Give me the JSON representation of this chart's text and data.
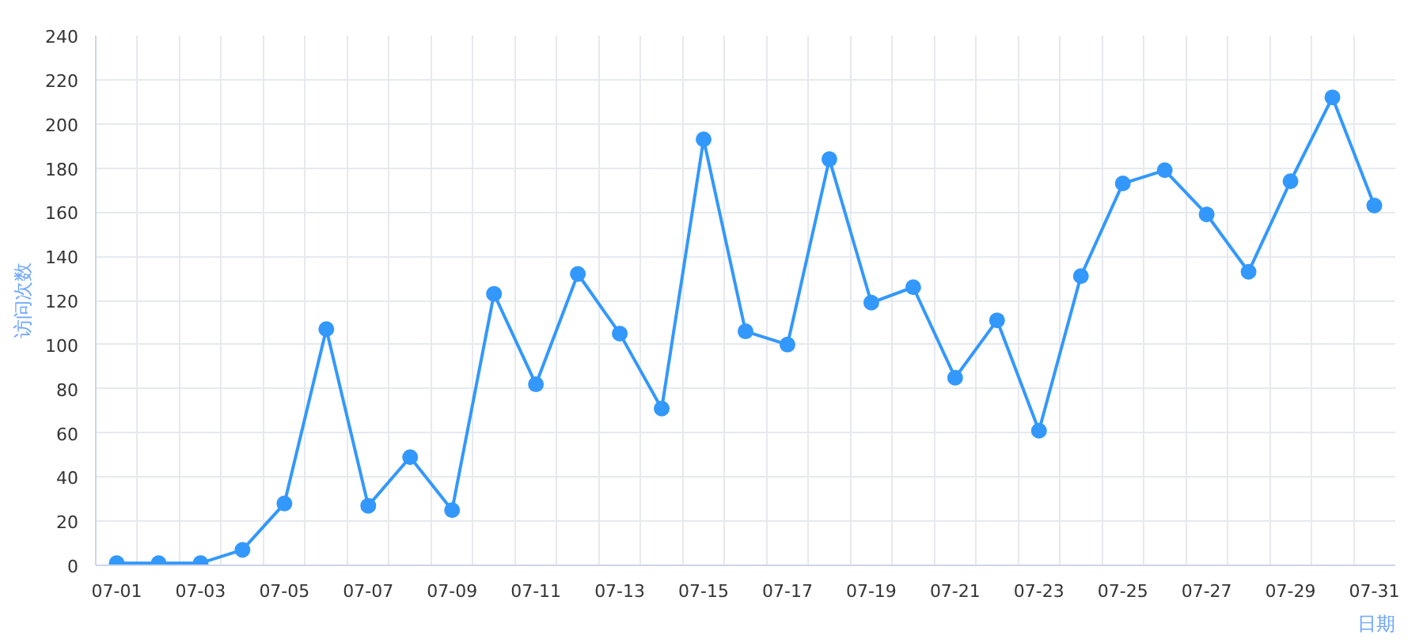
{
  "chart_data": {
    "type": "line",
    "xlabel": "日期",
    "ylabel": "访问次数",
    "categories": [
      "07-01",
      null,
      "07-03",
      null,
      "07-05",
      null,
      "07-07",
      null,
      "07-09",
      null,
      "07-11",
      null,
      "07-13",
      null,
      "07-15",
      null,
      "07-17",
      null,
      "07-19",
      null,
      "07-21",
      null,
      "07-23",
      null,
      "07-25",
      null,
      "07-27",
      null,
      "07-29",
      null,
      "07-31"
    ],
    "series": [
      {
        "color": "#3398fc",
        "values": [
          1,
          1,
          1,
          7,
          28,
          107,
          27,
          49,
          25,
          123,
          82,
          132,
          105,
          71,
          193,
          106,
          100,
          184,
          119,
          126,
          85,
          111,
          61,
          131,
          173,
          179,
          159,
          133,
          174,
          212,
          163
        ]
      }
    ],
    "ylim": [
      0,
      240
    ],
    "yticks": [
      0,
      20,
      40,
      60,
      80,
      100,
      120,
      140,
      160,
      180,
      200,
      220,
      240
    ],
    "grid": true,
    "marker": "circle",
    "line_style": "solid"
  }
}
